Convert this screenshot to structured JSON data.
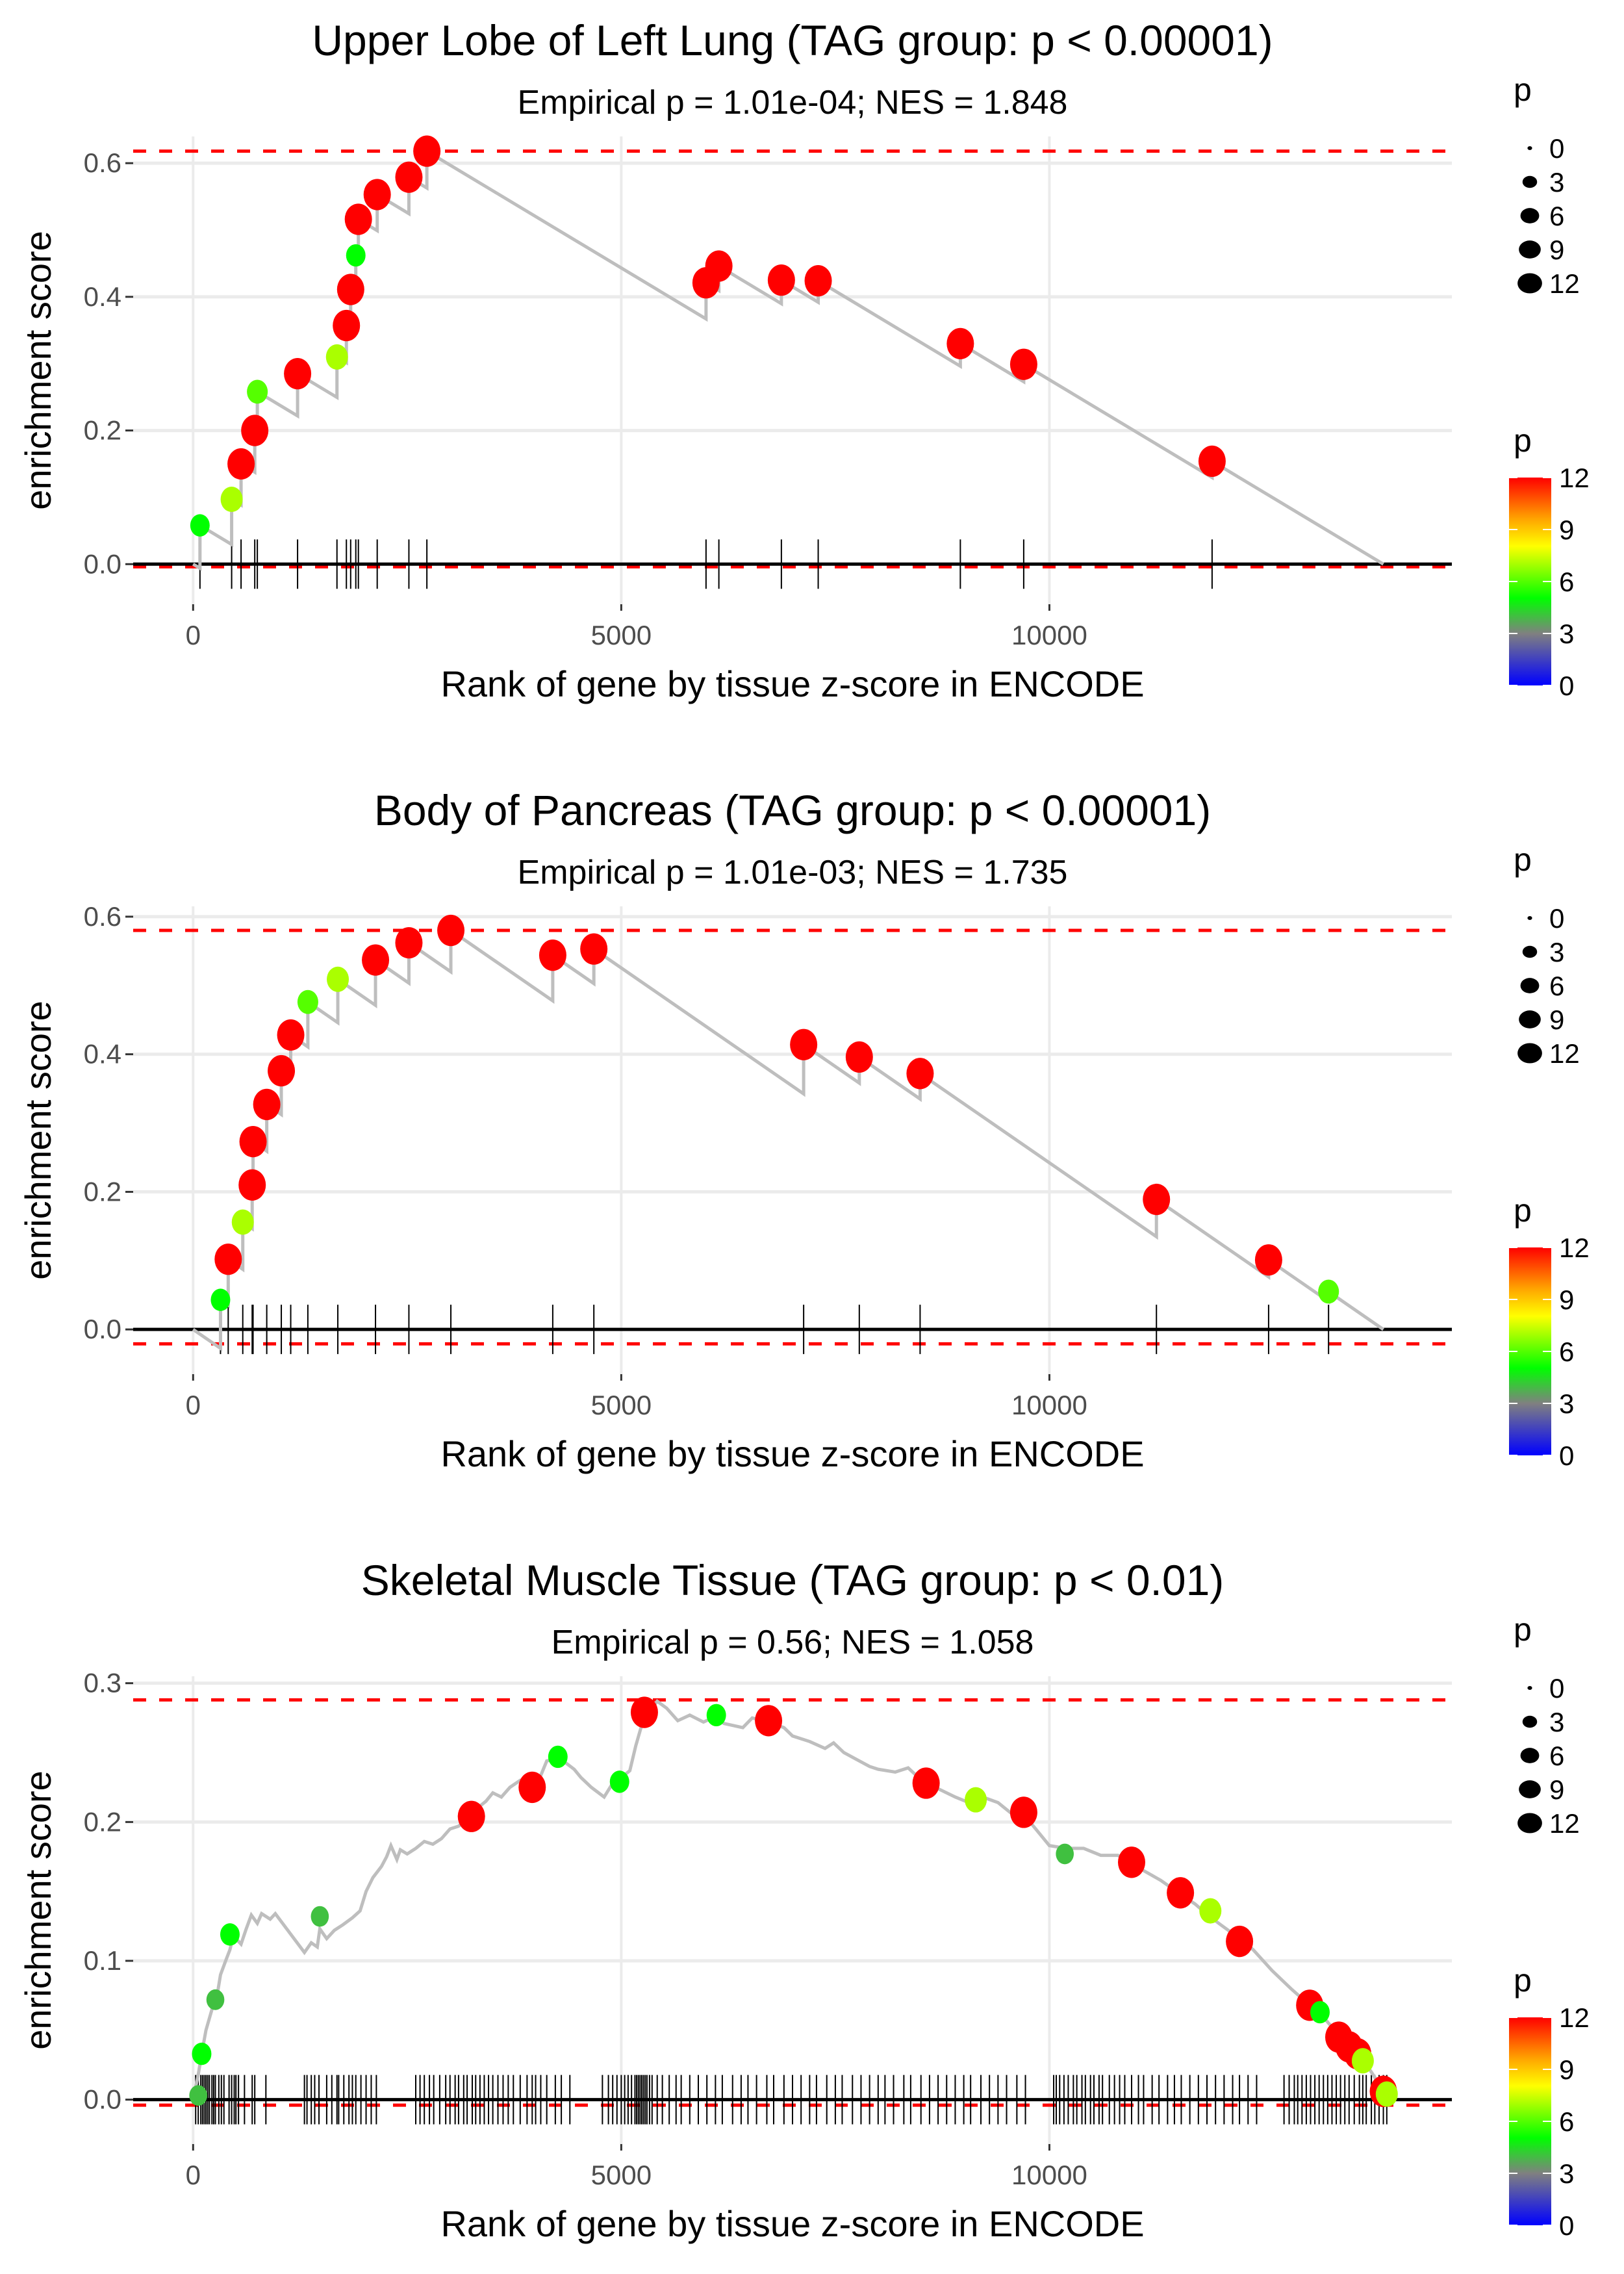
{
  "chart_data": [
    {
      "type": "line",
      "title": "Upper Lobe of Left Lung (TAG group: p < 0.00001)",
      "subtitle": "Empirical p = 1.01e-04; NES = 1.848",
      "xlabel": "Rank of gene by tissue z-score in ENCODE",
      "ylabel": "enrichment score",
      "xlim": [
        -700,
        14700
      ],
      "ylim": [
        -0.06,
        0.64
      ],
      "xticks": [
        0,
        5000,
        10000
      ],
      "xtick_labels": [
        "0",
        "5000",
        "10000"
      ],
      "yticks": [
        0.0,
        0.2,
        0.4,
        0.6
      ],
      "ytick_labels": [
        "0.0",
        "0.2",
        "0.4",
        "0.6"
      ],
      "max_es": 0.618,
      "min_es": -0.004,
      "n_genes": 13900,
      "hits": [
        {
          "x": 80,
          "es": 0.058,
          "p": 5
        },
        {
          "x": 450,
          "es": 0.097,
          "p": 7
        },
        {
          "x": 560,
          "es": 0.15,
          "p": 12
        },
        {
          "x": 720,
          "es": 0.2,
          "p": 12
        },
        {
          "x": 750,
          "es": 0.258,
          "p": 6
        },
        {
          "x": 1220,
          "es": 0.285,
          "p": 12
        },
        {
          "x": 1680,
          "es": 0.31,
          "p": 7
        },
        {
          "x": 1790,
          "es": 0.357,
          "p": 12
        },
        {
          "x": 1840,
          "es": 0.411,
          "p": 12
        },
        {
          "x": 1900,
          "es": 0.462,
          "p": 5
        },
        {
          "x": 1930,
          "es": 0.516,
          "p": 12
        },
        {
          "x": 2150,
          "es": 0.553,
          "p": 12
        },
        {
          "x": 2520,
          "es": 0.579,
          "p": 12
        },
        {
          "x": 2730,
          "es": 0.618,
          "p": 12
        },
        {
          "x": 5990,
          "es": 0.421,
          "p": 12
        },
        {
          "x": 6140,
          "es": 0.446,
          "p": 12
        },
        {
          "x": 6870,
          "es": 0.425,
          "p": 12
        },
        {
          "x": 7300,
          "es": 0.424,
          "p": 12
        },
        {
          "x": 8960,
          "es": 0.33,
          "p": 12
        },
        {
          "x": 9700,
          "es": 0.299,
          "p": 12
        },
        {
          "x": 11900,
          "es": 0.154,
          "p": 12
        }
      ],
      "legend_size": {
        "title": "p",
        "values": [
          0,
          3,
          6,
          9,
          12
        ],
        "labels": [
          "0",
          "3",
          "6",
          "9",
          "12"
        ]
      },
      "legend_color": {
        "title": "p",
        "values": [
          12,
          9,
          6,
          3,
          0
        ],
        "labels": [
          "12",
          "9",
          "6",
          "3",
          "0"
        ],
        "colors": [
          "#ff0000",
          "#ffa500",
          "#ffff00",
          "#00ff00",
          "#808080",
          "#0000ff"
        ]
      }
    },
    {
      "type": "line",
      "title": "Body of Pancreas (TAG group: p < 0.00001)",
      "subtitle": "Empirical p = 1.01e-03; NES = 1.735",
      "xlabel": "Rank of gene by tissue z-score in ENCODE",
      "ylabel": "enrichment score",
      "xlim": [
        -700,
        14700
      ],
      "ylim": [
        -0.065,
        0.615
      ],
      "xticks": [
        0,
        5000,
        10000
      ],
      "xtick_labels": [
        "0",
        "5000",
        "10000"
      ],
      "yticks": [
        0.0,
        0.2,
        0.4,
        0.6
      ],
      "ytick_labels": [
        "0.0",
        "0.2",
        "0.4",
        "0.6"
      ],
      "max_es": 0.58,
      "min_es": -0.021,
      "n_genes": 13900,
      "hits": [
        {
          "x": 320,
          "es": 0.043,
          "p": 5
        },
        {
          "x": 410,
          "es": 0.102,
          "p": 12
        },
        {
          "x": 580,
          "es": 0.156,
          "p": 7
        },
        {
          "x": 690,
          "es": 0.21,
          "p": 12
        },
        {
          "x": 700,
          "es": 0.273,
          "p": 12
        },
        {
          "x": 860,
          "es": 0.327,
          "p": 12
        },
        {
          "x": 1030,
          "es": 0.376,
          "p": 12
        },
        {
          "x": 1140,
          "es": 0.428,
          "p": 12
        },
        {
          "x": 1340,
          "es": 0.476,
          "p": 6
        },
        {
          "x": 1690,
          "es": 0.509,
          "p": 7
        },
        {
          "x": 2130,
          "es": 0.537,
          "p": 12
        },
        {
          "x": 2520,
          "es": 0.562,
          "p": 12
        },
        {
          "x": 3010,
          "es": 0.58,
          "p": 12
        },
        {
          "x": 4200,
          "es": 0.544,
          "p": 12
        },
        {
          "x": 4680,
          "es": 0.553,
          "p": 12
        },
        {
          "x": 7130,
          "es": 0.414,
          "p": 12
        },
        {
          "x": 7780,
          "es": 0.396,
          "p": 12
        },
        {
          "x": 8490,
          "es": 0.372,
          "p": 12
        },
        {
          "x": 11250,
          "es": 0.189,
          "p": 12
        },
        {
          "x": 12560,
          "es": 0.101,
          "p": 12
        },
        {
          "x": 13260,
          "es": 0.055,
          "p": 6
        }
      ],
      "legend_size": {
        "title": "p",
        "values": [
          0,
          3,
          6,
          9,
          12
        ],
        "labels": [
          "0",
          "3",
          "6",
          "9",
          "12"
        ]
      },
      "legend_color": {
        "title": "p",
        "values": [
          12,
          9,
          6,
          3,
          0
        ],
        "labels": [
          "12",
          "9",
          "6",
          "3",
          "0"
        ],
        "colors": [
          "#ff0000",
          "#ffa500",
          "#ffff00",
          "#00ff00",
          "#808080",
          "#0000ff"
        ]
      }
    },
    {
      "type": "line",
      "title": "Skeletal Muscle Tissue (TAG group: p < 0.01)",
      "subtitle": "Empirical p = 0.56; NES = 1.058",
      "xlabel": "Rank of gene by tissue z-score in ENCODE",
      "ylabel": "enrichment score",
      "xlim": [
        -700,
        14700
      ],
      "ylim": [
        -0.032,
        0.305
      ],
      "xticks": [
        0,
        5000,
        10000
      ],
      "xtick_labels": [
        "0",
        "5000",
        "10000"
      ],
      "yticks": [
        0.0,
        0.1,
        0.2,
        0.3
      ],
      "ytick_labels": [
        "0.0",
        "0.1",
        "0.2",
        "0.3"
      ],
      "max_es": 0.288,
      "min_es": -0.004,
      "n_genes": 13900,
      "curve": [
        [
          0,
          0.0
        ],
        [
          60,
          0.018
        ],
        [
          100,
          0.033
        ],
        [
          150,
          0.05
        ],
        [
          220,
          0.065
        ],
        [
          280,
          0.075
        ],
        [
          320,
          0.09
        ],
        [
          380,
          0.1
        ],
        [
          430,
          0.108
        ],
        [
          470,
          0.118
        ],
        [
          560,
          0.112
        ],
        [
          620,
          0.123
        ],
        [
          680,
          0.133
        ],
        [
          750,
          0.127
        ],
        [
          800,
          0.134
        ],
        [
          900,
          0.13
        ],
        [
          960,
          0.134
        ],
        [
          1300,
          0.106
        ],
        [
          1380,
          0.113
        ],
        [
          1450,
          0.11
        ],
        [
          1480,
          0.123
        ],
        [
          1560,
          0.116
        ],
        [
          1650,
          0.122
        ],
        [
          1750,
          0.126
        ],
        [
          1860,
          0.131
        ],
        [
          1950,
          0.136
        ],
        [
          2020,
          0.15
        ],
        [
          2100,
          0.16
        ],
        [
          2200,
          0.168
        ],
        [
          2260,
          0.175
        ],
        [
          2310,
          0.183
        ],
        [
          2380,
          0.173
        ],
        [
          2420,
          0.18
        ],
        [
          2500,
          0.177
        ],
        [
          2600,
          0.181
        ],
        [
          2700,
          0.186
        ],
        [
          2800,
          0.184
        ],
        [
          2900,
          0.188
        ],
        [
          3000,
          0.195
        ],
        [
          3100,
          0.197
        ],
        [
          3220,
          0.203
        ],
        [
          3300,
          0.209
        ],
        [
          3420,
          0.215
        ],
        [
          3500,
          0.221
        ],
        [
          3600,
          0.218
        ],
        [
          3700,
          0.225
        ],
        [
          3820,
          0.23
        ],
        [
          3960,
          0.225
        ],
        [
          4050,
          0.232
        ],
        [
          4130,
          0.244
        ],
        [
          4280,
          0.246
        ],
        [
          4450,
          0.238
        ],
        [
          4530,
          0.232
        ],
        [
          4650,
          0.225
        ],
        [
          4800,
          0.218
        ],
        [
          4900,
          0.228
        ],
        [
          5000,
          0.232
        ],
        [
          5100,
          0.237
        ],
        [
          5170,
          0.255
        ],
        [
          5240,
          0.27
        ],
        [
          5320,
          0.279
        ],
        [
          5420,
          0.287
        ],
        [
          5530,
          0.282
        ],
        [
          5660,
          0.273
        ],
        [
          5800,
          0.277
        ],
        [
          5960,
          0.272
        ],
        [
          6100,
          0.276
        ],
        [
          6200,
          0.271
        ],
        [
          6420,
          0.268
        ],
        [
          6530,
          0.275
        ],
        [
          6720,
          0.272
        ],
        [
          6900,
          0.268
        ],
        [
          7000,
          0.262
        ],
        [
          7200,
          0.258
        ],
        [
          7380,
          0.253
        ],
        [
          7480,
          0.257
        ],
        [
          7600,
          0.25
        ],
        [
          7750,
          0.245
        ],
        [
          7900,
          0.24
        ],
        [
          8000,
          0.238
        ],
        [
          8200,
          0.236
        ],
        [
          8350,
          0.239
        ],
        [
          8560,
          0.227
        ],
        [
          8700,
          0.224
        ],
        [
          8900,
          0.218
        ],
        [
          9060,
          0.214
        ],
        [
          9220,
          0.218
        ],
        [
          9400,
          0.214
        ],
        [
          9560,
          0.206
        ],
        [
          9700,
          0.206
        ],
        [
          9800,
          0.198
        ],
        [
          10000,
          0.183
        ],
        [
          10200,
          0.181
        ],
        [
          10400,
          0.181
        ],
        [
          10600,
          0.176
        ],
        [
          10800,
          0.176
        ],
        [
          10960,
          0.17
        ],
        [
          11100,
          0.165
        ],
        [
          11300,
          0.158
        ],
        [
          11530,
          0.148
        ],
        [
          11700,
          0.141
        ],
        [
          11850,
          0.133
        ],
        [
          12000,
          0.126
        ],
        [
          12200,
          0.117
        ],
        [
          12380,
          0.108
        ],
        [
          12600,
          0.093
        ],
        [
          12820,
          0.08
        ],
        [
          13040,
          0.068
        ],
        [
          13220,
          0.058
        ],
        [
          13400,
          0.045
        ],
        [
          13540,
          0.038
        ],
        [
          13650,
          0.03
        ],
        [
          13780,
          0.018
        ],
        [
          13880,
          0.008
        ],
        [
          13960,
          0.002
        ]
      ],
      "hits": [
        {
          "x": 60,
          "es": 0.003,
          "p": 4
        },
        {
          "x": 100,
          "es": 0.033,
          "p": 5
        },
        {
          "x": 260,
          "es": 0.072,
          "p": 4
        },
        {
          "x": 430,
          "es": 0.119,
          "p": 5
        },
        {
          "x": 1480,
          "es": 0.132,
          "p": 4
        },
        {
          "x": 3250,
          "es": 0.204,
          "p": 12
        },
        {
          "x": 3960,
          "es": 0.225,
          "p": 12
        },
        {
          "x": 4260,
          "es": 0.247,
          "p": 5
        },
        {
          "x": 4980,
          "es": 0.229,
          "p": 5
        },
        {
          "x": 5270,
          "es": 0.279,
          "p": 12
        },
        {
          "x": 6110,
          "es": 0.277,
          "p": 5
        },
        {
          "x": 6720,
          "es": 0.273,
          "p": 12
        },
        {
          "x": 8560,
          "es": 0.228,
          "p": 12
        },
        {
          "x": 9140,
          "es": 0.216,
          "p": 7
        },
        {
          "x": 9700,
          "es": 0.207,
          "p": 12
        },
        {
          "x": 10180,
          "es": 0.177,
          "p": 4
        },
        {
          "x": 10960,
          "es": 0.171,
          "p": 12
        },
        {
          "x": 11530,
          "es": 0.149,
          "p": 12
        },
        {
          "x": 11880,
          "es": 0.136,
          "p": 7
        },
        {
          "x": 12220,
          "es": 0.114,
          "p": 12
        },
        {
          "x": 13040,
          "es": 0.068,
          "p": 12
        },
        {
          "x": 13160,
          "es": 0.063,
          "p": 5
        },
        {
          "x": 13380,
          "es": 0.045,
          "p": 12
        },
        {
          "x": 13500,
          "es": 0.038,
          "p": 12
        },
        {
          "x": 13600,
          "es": 0.033,
          "p": 12
        },
        {
          "x": 13660,
          "es": 0.028,
          "p": 7
        },
        {
          "x": 13900,
          "es": 0.006,
          "p": 12
        },
        {
          "x": 13940,
          "es": 0.004,
          "p": 7
        }
      ],
      "rug_hits": [
        30,
        60,
        90,
        110,
        130,
        150,
        170,
        190,
        220,
        240,
        260,
        300,
        330,
        360,
        420,
        450,
        480,
        500,
        530,
        600,
        690,
        720,
        850,
        1300,
        1330,
        1380,
        1420,
        1470,
        1560,
        1620,
        1680,
        1700,
        1760,
        1820,
        1860,
        1900,
        1960,
        2020,
        2080,
        2140,
        2600,
        2650,
        2700,
        2760,
        2810,
        2880,
        2950,
        3000,
        3060,
        3100,
        3160,
        3200,
        3260,
        3300,
        3350,
        3400,
        3450,
        3500,
        3560,
        3620,
        3680,
        3740,
        3820,
        3900,
        3960,
        4000,
        4060,
        4130,
        4230,
        4300,
        4400,
        4780,
        4850,
        4900,
        4950,
        5000,
        5040,
        5080,
        5120,
        5160,
        5180,
        5200,
        5220,
        5240,
        5260,
        5280,
        5300,
        5330,
        5360,
        5420,
        5480,
        5560,
        5640,
        5700,
        5800,
        5900,
        6000,
        6100,
        6180,
        6300,
        6400,
        6480,
        6580,
        6700,
        6780,
        6900,
        7000,
        7100,
        7200,
        7280,
        7400,
        7500,
        7580,
        7700,
        7800,
        7900,
        8000,
        8080,
        8180,
        8300,
        8380,
        8500,
        8600,
        8700,
        8800,
        8900,
        9000,
        9080,
        9200,
        9300,
        9400,
        9500,
        9620,
        9720,
        10050,
        10080,
        10120,
        10170,
        10220,
        10280,
        10320,
        10380,
        10420,
        10480,
        10520,
        10580,
        10620,
        10700,
        10760,
        10820,
        10880,
        10960,
        11040,
        11100,
        11200,
        11280,
        11380,
        11460,
        11540,
        11640,
        11740,
        11840,
        11940,
        12040,
        12140,
        12220,
        12320,
        12420,
        12740,
        12800,
        12860,
        12900,
        12950,
        13000,
        13050,
        13100,
        13150,
        13200,
        13250,
        13300,
        13350,
        13400,
        13450,
        13500,
        13560,
        13620,
        13660,
        13700,
        13760,
        13800,
        13850,
        13900,
        13940
      ],
      "legend_size": {
        "title": "p",
        "values": [
          0,
          3,
          6,
          9,
          12
        ],
        "labels": [
          "0",
          "3",
          "6",
          "9",
          "12"
        ]
      },
      "legend_color": {
        "title": "p",
        "values": [
          12,
          9,
          6,
          3,
          0
        ],
        "labels": [
          "12",
          "9",
          "6",
          "3",
          "0"
        ],
        "colors": [
          "#ff0000",
          "#ffa500",
          "#ffff00",
          "#00ff00",
          "#808080",
          "#0000ff"
        ]
      }
    }
  ],
  "colors": {
    "running_sum_line": "#bebebe",
    "threshold_line": "#ff0000",
    "zero_line": "#000000",
    "gridline": "#ebebeb",
    "rug": "#000000"
  }
}
